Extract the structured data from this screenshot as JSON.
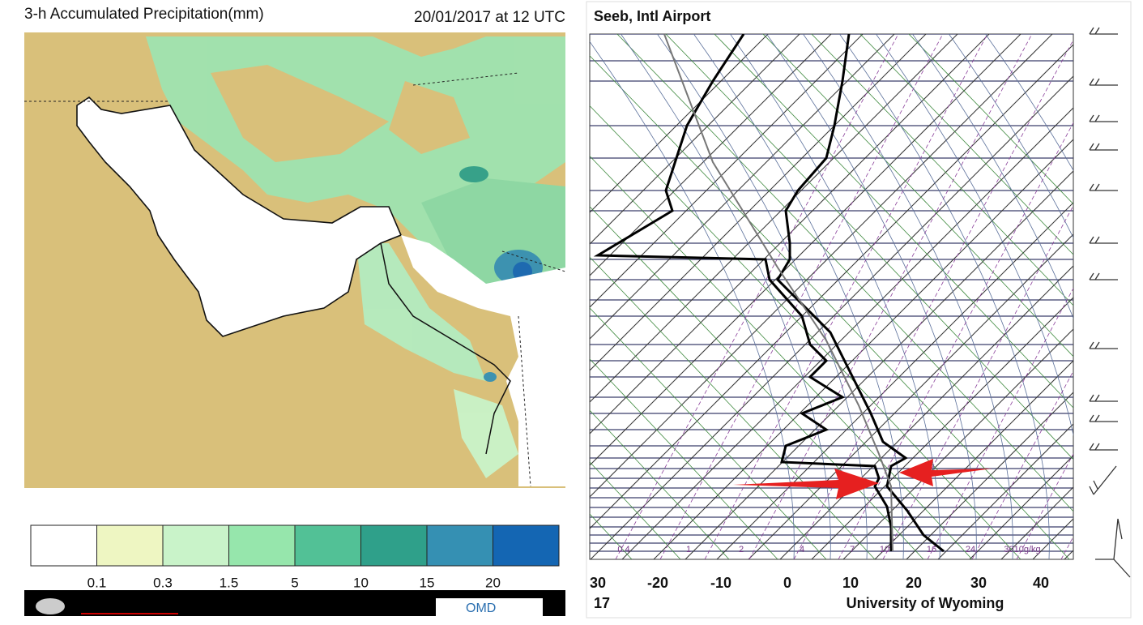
{
  "map": {
    "title": "3-h Accumulated Precipitation(mm)",
    "date": "20/01/2017 at 12 UTC",
    "legend": {
      "labels": [
        "0.1",
        "0.3",
        "1.5",
        "5",
        "10",
        "15",
        "20"
      ],
      "colors": [
        "#ffffff",
        "#eef6c2",
        "#c9f3c9",
        "#96e6ac",
        "#52c196",
        "#2fa08a",
        "#3590b3",
        "#1466b3"
      ]
    },
    "logo": "OMD"
  },
  "sounding": {
    "title": "Seeb, Intl Airport",
    "mixing_ratio_labels": [
      "0.4",
      "1",
      "2",
      "4",
      "7",
      "10",
      "16",
      "24",
      "3010g/kg"
    ],
    "x_labels": [
      "30",
      "-20",
      "-10",
      "0",
      "10",
      "20",
      "30",
      "40"
    ],
    "footer_left": "17",
    "footer_right": "University of Wyoming"
  }
}
